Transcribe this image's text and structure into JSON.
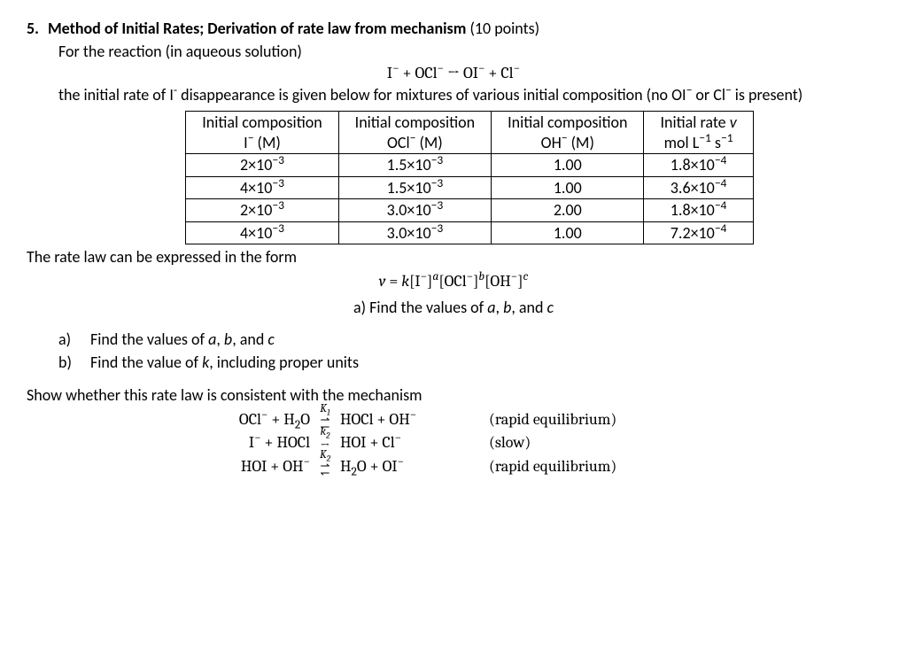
{
  "question": {
    "number": "5.",
    "title": "Method of Initial Rates; Derivation of rate law from mechanism",
    "points": "(10 points)"
  },
  "intro": {
    "line1": "For the reaction (in aqueous solution)",
    "equation_html": "I<sup>−</sup> + OCl<sup>−</sup> → OI<sup>−</sup> + Cl<sup>−</sup>",
    "line2_html": "the initial rate of I<sup>-</sup> disappearance is given below for mixtures of various initial composition (no OI<sup>−</sup> or Cl<sup>−</sup> is present)"
  },
  "table": {
    "headers": [
      {
        "l1": "Initial composition",
        "l2_html": "I<sup>−</sup> (M)"
      },
      {
        "l1": "Initial composition",
        "l2_html": "OCl<sup>−</sup> (M)"
      },
      {
        "l1": "Initial composition",
        "l2_html": "OH<sup>−</sup> (M)"
      },
      {
        "l1_html": "Initial rate <span class=\"italic\">v</span>",
        "l2_html": "mol L<sup>−1</sup> s<sup>−1</sup>"
      }
    ],
    "rows": [
      [
        "2×10<sup>−3</sup>",
        "1.5×10<sup>−3</sup>",
        "1.00",
        "1.8×10<sup>−4</sup>"
      ],
      [
        "4×10<sup>−3</sup>",
        "1.5×10<sup>−3</sup>",
        "1.00",
        "3.6×10<sup>−4</sup>"
      ],
      [
        "2×10<sup>−3</sup>",
        "3.0×10<sup>−3</sup>",
        "2.00",
        "1.8×10<sup>−4</sup>"
      ],
      [
        "4×10<sup>−3</sup>",
        "3.0×10<sup>−3</sup>",
        "1.00",
        "7.2×10<sup>−4</sup>"
      ]
    ]
  },
  "ratelaw": {
    "lead": "The rate law can be expressed in the form",
    "expr_html": "<span class=\"italic\">v</span> = <span class=\"italic\">k</span>[I<sup>−</sup>]<sup class=\"supexp\">a</sup>[OCl<sup>−</sup>]<sup class=\"supexp\">b</sup>[OH<sup>−</sup>]<sup class=\"supexp\">c</sup>",
    "subprompt_html": "a) Find the values of <span class=\"italic\">a</span>, <span class=\"italic\">b</span>, and <span class=\"italic\">c</span>"
  },
  "parts": {
    "a_label": "a)",
    "a_text_html": "Find the values of <span class=\"italic\">a</span>, <span class=\"italic\">b</span>, and <span class=\"italic\">c</span>",
    "b_label": "b)",
    "b_text_html": "Find the value of <span class=\"italic\">k</span>, including proper units"
  },
  "mechanism": {
    "lead": "Show whether this rate law is consistent with the mechanism",
    "steps": [
      {
        "lhs_html": "OCl<sup>−</sup> + H<sub>2</sub>O",
        "const_html": "K<sub>1</sub>",
        "arrow_type": "equil",
        "rhs_html": "HOCl + OH<sup>−</sup>",
        "note": "(rapid equilibrium)"
      },
      {
        "lhs_html": "I<sup>−</sup> + HOCl",
        "const_html": "k<sub>2</sub>",
        "arrow_type": "forward",
        "rhs_html": "HOI + Cl<sup>−</sup>",
        "note": "(slow)"
      },
      {
        "lhs_html": "HOI + OH<sup>−</sup>",
        "const_html": "K<sub>2</sub>",
        "arrow_type": "equil",
        "rhs_html": "H<sub>2</sub>O + OI<sup>−</sup>",
        "note": "(rapid equilibrium)"
      }
    ]
  }
}
